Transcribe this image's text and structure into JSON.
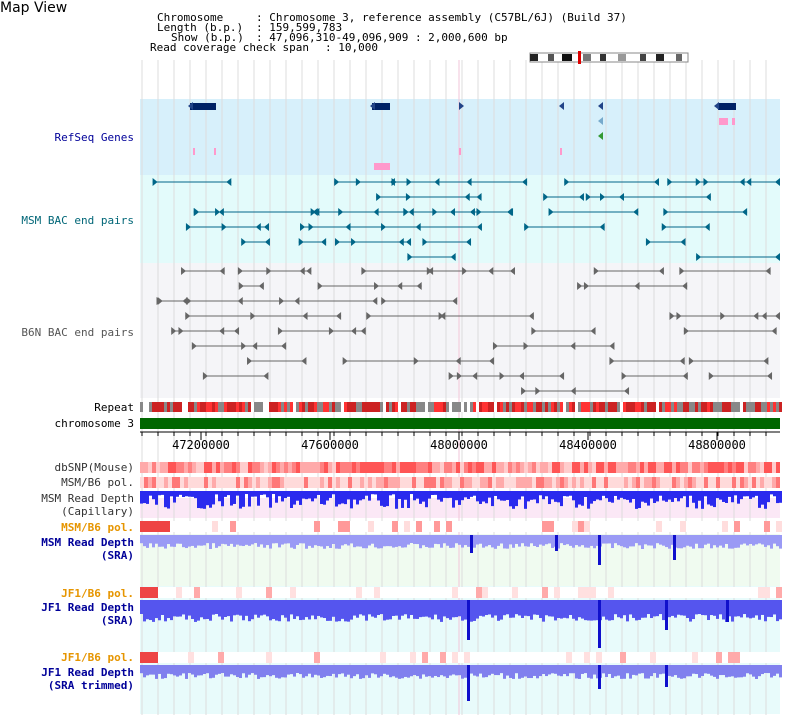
{
  "title": "Map View",
  "header": {
    "chromosome_label": "Chromosome",
    "chromosome_value": ": Chromosome 3, reference assembly (C57BL/6J) (Build 37)",
    "length_label": "Length (b.p.)",
    "length_value": ": 159,599,783",
    "show_label": "Show (b.p.)",
    "show_value": ": 47,096,310-49,096,909 : 2,000,600 bp",
    "coverage_label": "Read coverage check span",
    "coverage_value": ": 10,000"
  },
  "tracks": {
    "refseq": "RefSeq Genes",
    "msm_bac": "MSM BAC end pairs",
    "b6n_bac": "B6N BAC end pairs",
    "repeat": "Repeat",
    "chromosome": "chromosome 3",
    "dbsnp": "dbSNP(Mouse)",
    "msm_b6_pol": "MSM/B6 pol.",
    "msm_depth_cap_1": "MSM Read Depth",
    "msm_depth_cap_2": "(Capillary)",
    "msm_b6_pol_sra": "MSM/B6 pol.",
    "msm_depth_sra_1": "MSM Read Depth",
    "msm_depth_sra_2": "(SRA)",
    "jf1_b6_pol_1": "JF1/B6 pol.",
    "jf1_depth_sra_1": "JF1 Read Depth",
    "jf1_depth_sra_2": "(SRA)",
    "jf1_b6_pol_2": "JF1/B6 pol.",
    "jf1_depth_trim_1": "JF1 Read Depth",
    "jf1_depth_trim_2": "(SRA trimmed)"
  },
  "axis": {
    "ticks": [
      "47200000",
      "47600000",
      "48000000",
      "48400000",
      "48800000"
    ],
    "range": [
      47096310,
      49096909
    ]
  },
  "colors": {
    "refseq_label": "#000099",
    "msm_label": "#006677",
    "b6n_label": "#555555",
    "pol_label": "#e69500",
    "depth_label": "#000099",
    "chromosome_bar": "#006600"
  }
}
